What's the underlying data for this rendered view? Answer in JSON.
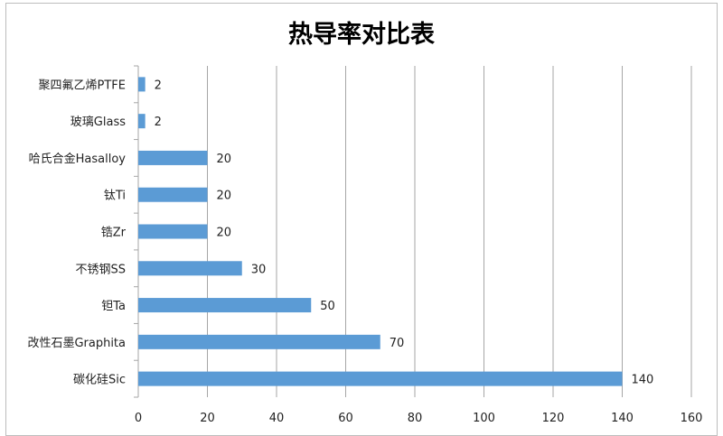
{
  "chart_data": {
    "type": "bar",
    "orientation": "horizontal",
    "title": "热导率对比表",
    "categories": [
      "聚四氟乙烯PTFE",
      "玻璃Glass",
      "哈氏合金Hasalloy",
      "钛Ti",
      "锆Zr",
      "不锈钢SS",
      "钽Ta",
      "改性石墨Graphita",
      "碳化硅Sic"
    ],
    "values": [
      2,
      2,
      20,
      20,
      20,
      30,
      50,
      70,
      140
    ],
    "xlim": [
      0,
      160
    ],
    "xticks": [
      0,
      20,
      40,
      60,
      80,
      100,
      120,
      140,
      160
    ],
    "grid": "vertical",
    "legend": "none",
    "data_labels": true,
    "bar_color": "#5b9bd5"
  }
}
